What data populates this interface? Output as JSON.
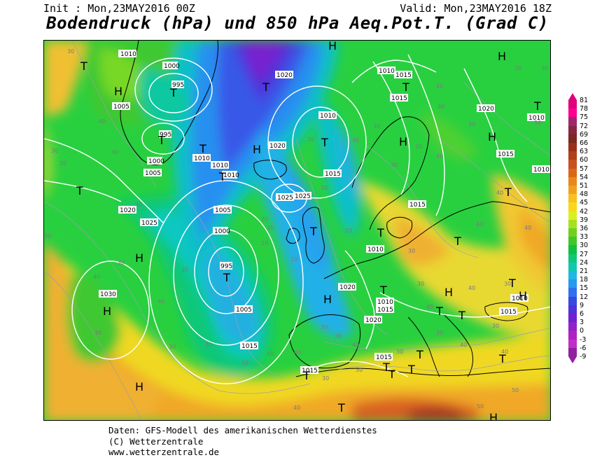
{
  "header": {
    "init": "Init : Mon,23MAY2016 00Z",
    "valid": "Valid: Mon,23MAY2016 18Z",
    "title": "Bodendruck (hPa) und 850 hPa Aeq.Pot.T. (Grad C)"
  },
  "footer": {
    "line1": "Daten: GFS-Modell des amerikanischen Wetterdienstes",
    "line2": "(C) Wetterzentrale",
    "line3": "www.wetterzentrale.de"
  },
  "legend": {
    "labels": [
      "81",
      "78",
      "75",
      "72",
      "69",
      "66",
      "63",
      "60",
      "57",
      "54",
      "51",
      "48",
      "45",
      "42",
      "39",
      "36",
      "33",
      "30",
      "27",
      "24",
      "21",
      "18",
      "15",
      "12",
      "9",
      "6",
      "3",
      "0",
      "-3",
      "-6",
      "-9"
    ],
    "colors": [
      "#e0007a",
      "#ff0090",
      "#a0286e",
      "#8a2640",
      "#7a2a1e",
      "#98301a",
      "#b04018",
      "#c85020",
      "#d86818",
      "#e88818",
      "#f0a020",
      "#f8c020",
      "#f8d818",
      "#d8f020",
      "#a8e020",
      "#70d020",
      "#40c828",
      "#10c040",
      "#10c878",
      "#10c8b0",
      "#20b8e0",
      "#2898f0",
      "#3070f0",
      "#3848e0",
      "#5030d8",
      "#7020d0",
      "#9020c8",
      "#b020c0",
      "#c030c8",
      "#9020a0"
    ]
  },
  "isobar_labels": [
    "1010",
    "1000",
    "995",
    "1005",
    "995",
    "1000",
    "1005",
    "1010",
    "1010",
    "1005",
    "1000",
    "995",
    "1005",
    "1010",
    "1015",
    "1020",
    "1025",
    "1030",
    "1015",
    "1020",
    "1025",
    "1010",
    "1015",
    "1020",
    "1010",
    "1020",
    "1015",
    "1010",
    "1015",
    "1015",
    "1010",
    "1020",
    "1010",
    "1015",
    "1025",
    "1010",
    "1015",
    "1015",
    "1015",
    "1010",
    "1020"
  ],
  "theta_labels": [
    "30",
    "30",
    "40",
    "40",
    "30",
    "40",
    "40",
    "30",
    "30",
    "20",
    "20",
    "20",
    "20",
    "40",
    "20",
    "30",
    "30",
    "40",
    "40",
    "30",
    "50",
    "50",
    "40",
    "30",
    "40",
    "30",
    "30",
    "30",
    "40",
    "30",
    "40",
    "20",
    "30",
    "30",
    "40",
    "40",
    "30",
    "30",
    "40",
    "30",
    "40",
    "40",
    "50",
    "50",
    "30",
    "50",
    "30",
    "40",
    "20",
    "30",
    "30",
    "40",
    "30",
    "30",
    "50",
    "40"
  ],
  "pressure_centers": [
    "H",
    "H",
    "T",
    "T",
    "T",
    "H",
    "T",
    "T",
    "T",
    "T",
    "H",
    "H",
    "T",
    "T",
    "T",
    "T",
    "H",
    "H",
    "T",
    "T",
    "T",
    "T",
    "T",
    "H",
    "T",
    "H",
    "H",
    "T",
    "H",
    "T",
    "T",
    "T",
    "T",
    "T",
    "T",
    "H",
    "H",
    "T",
    "T"
  ]
}
